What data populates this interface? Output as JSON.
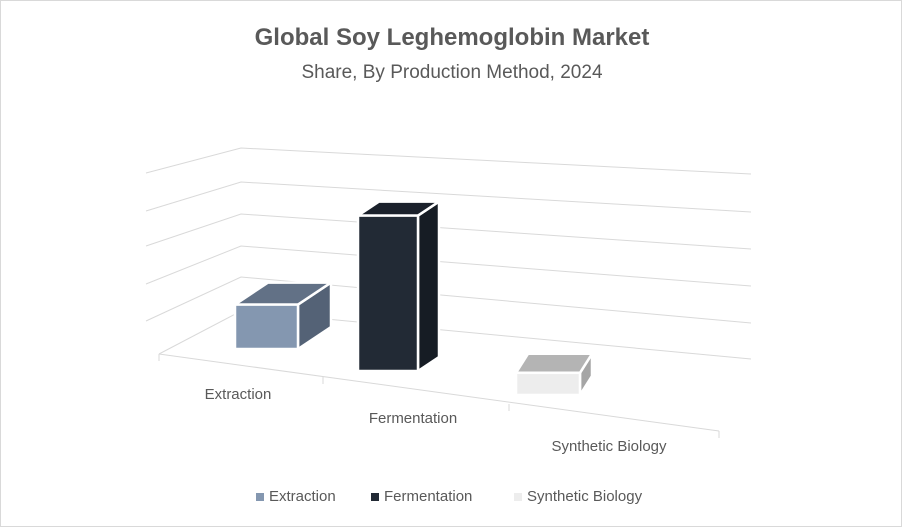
{
  "chart_data": {
    "type": "bar",
    "subtype": "3d-column",
    "title": "Global Soy Leghemoglobin Market",
    "subtitle": "Share, By Production Method, 2024",
    "categories": [
      "Extraction",
      "Fermentation",
      "Synthetic Biology"
    ],
    "values": [
      20,
      70,
      10
    ],
    "value_axis_labels_shown": false,
    "grid": true,
    "legend": "bottom",
    "series": [
      {
        "name": "Extraction",
        "color": "#8497b0"
      },
      {
        "name": "Fermentation",
        "color": "#222a35"
      },
      {
        "name": "Synthetic Biology",
        "color": "#ededed"
      }
    ]
  }
}
